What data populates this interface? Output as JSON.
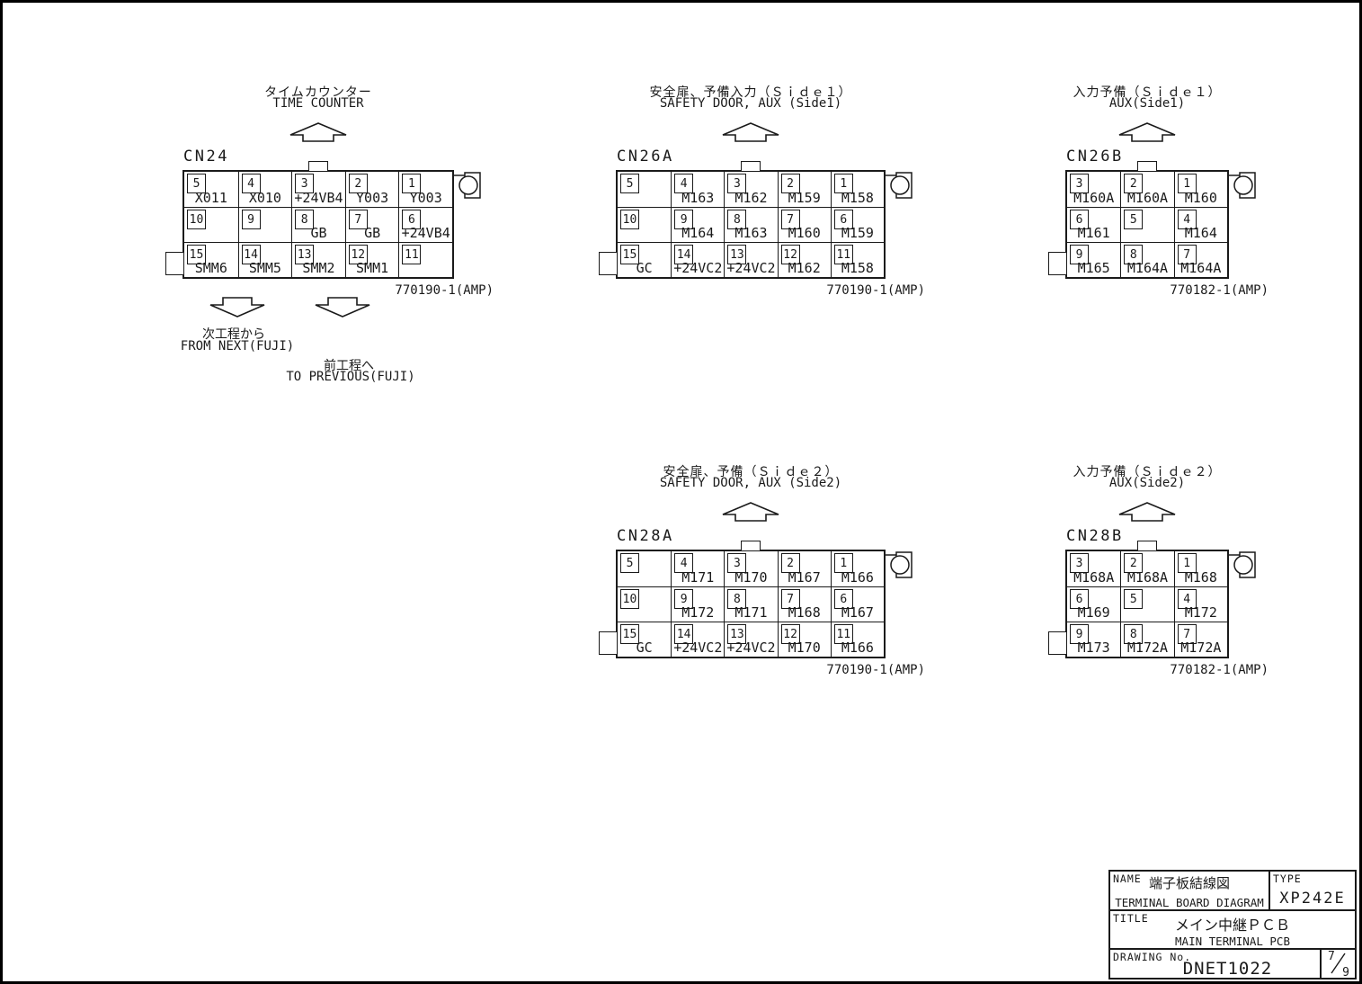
{
  "page": {
    "background": "#ffffff",
    "line_color": "#1a1a1a"
  },
  "icons": {
    "up_arrow": "up-arrow-icon",
    "down_arrow": "down-arrow-icon",
    "polarity_key": "connector-polarity-key-icon"
  },
  "connectors": {
    "cn24": {
      "id_label": "CN24",
      "heading_jp": "タイムカウンター",
      "heading_en": "TIME COUNTER",
      "part_number": "770190-1(AMP)",
      "rows": [
        [
          {
            "pin": "5",
            "label": "X011"
          },
          {
            "pin": "4",
            "label": "X010"
          },
          {
            "pin": "3",
            "label": "+24VB4"
          },
          {
            "pin": "2",
            "label": "Y003"
          },
          {
            "pin": "1",
            "label": "Y003"
          }
        ],
        [
          {
            "pin": "10",
            "label": ""
          },
          {
            "pin": "9",
            "label": ""
          },
          {
            "pin": "8",
            "label": "GB"
          },
          {
            "pin": "7",
            "label": "GB"
          },
          {
            "pin": "6",
            "label": "+24VB4"
          }
        ],
        [
          {
            "pin": "15",
            "label": "SMM6"
          },
          {
            "pin": "14",
            "label": "SMM5"
          },
          {
            "pin": "13",
            "label": "SMM2"
          },
          {
            "pin": "12",
            "label": "SMM1"
          },
          {
            "pin": "11",
            "label": ""
          }
        ]
      ]
    },
    "cn26a": {
      "id_label": "CN26A",
      "heading_jp": "安全扉、予備入力（Ｓｉｄｅ１）",
      "heading_en": "SAFETY DOOR, AUX (Side1)",
      "part_number": "770190-1(AMP)",
      "rows": [
        [
          {
            "pin": "5",
            "label": ""
          },
          {
            "pin": "4",
            "label": "M163"
          },
          {
            "pin": "3",
            "label": "M162"
          },
          {
            "pin": "2",
            "label": "M159"
          },
          {
            "pin": "1",
            "label": "M158"
          }
        ],
        [
          {
            "pin": "10",
            "label": ""
          },
          {
            "pin": "9",
            "label": "M164"
          },
          {
            "pin": "8",
            "label": "M163"
          },
          {
            "pin": "7",
            "label": "M160"
          },
          {
            "pin": "6",
            "label": "M159"
          }
        ],
        [
          {
            "pin": "15",
            "label": "GC"
          },
          {
            "pin": "14",
            "label": "+24VC2"
          },
          {
            "pin": "13",
            "label": "+24VC2"
          },
          {
            "pin": "12",
            "label": "M162"
          },
          {
            "pin": "11",
            "label": "M158"
          }
        ]
      ]
    },
    "cn26b": {
      "id_label": "CN26B",
      "heading_jp": "入力予備（Ｓｉｄｅ１）",
      "heading_en": "AUX(Side1)",
      "part_number": "770182-1(AMP)",
      "rows": [
        [
          {
            "pin": "3",
            "label": "M160A"
          },
          {
            "pin": "2",
            "label": "M160A"
          },
          {
            "pin": "1",
            "label": "M160"
          }
        ],
        [
          {
            "pin": "6",
            "label": "M161"
          },
          {
            "pin": "5",
            "label": ""
          },
          {
            "pin": "4",
            "label": "M164"
          }
        ],
        [
          {
            "pin": "9",
            "label": "M165"
          },
          {
            "pin": "8",
            "label": "M164A"
          },
          {
            "pin": "7",
            "label": "M164A"
          }
        ]
      ]
    },
    "cn28a": {
      "id_label": "CN28A",
      "heading_jp": "安全扉、予備（Ｓｉｄｅ２）",
      "heading_en": "SAFETY DOOR, AUX (Side2)",
      "part_number": "770190-1(AMP)",
      "rows": [
        [
          {
            "pin": "5",
            "label": ""
          },
          {
            "pin": "4",
            "label": "M171"
          },
          {
            "pin": "3",
            "label": "M170"
          },
          {
            "pin": "2",
            "label": "M167"
          },
          {
            "pin": "1",
            "label": "M166"
          }
        ],
        [
          {
            "pin": "10",
            "label": ""
          },
          {
            "pin": "9",
            "label": "M172"
          },
          {
            "pin": "8",
            "label": "M171"
          },
          {
            "pin": "7",
            "label": "M168"
          },
          {
            "pin": "6",
            "label": "M167"
          }
        ],
        [
          {
            "pin": "15",
            "label": "GC"
          },
          {
            "pin": "14",
            "label": "+24VC2"
          },
          {
            "pin": "13",
            "label": "+24VC2"
          },
          {
            "pin": "12",
            "label": "M170"
          },
          {
            "pin": "11",
            "label": "M166"
          }
        ]
      ]
    },
    "cn28b": {
      "id_label": "CN28B",
      "heading_jp": "入力予備（Ｓｉｄｅ２）",
      "heading_en": "AUX(Side2)",
      "part_number": "770182-1(AMP)",
      "rows": [
        [
          {
            "pin": "3",
            "label": "M168A"
          },
          {
            "pin": "2",
            "label": "M168A"
          },
          {
            "pin": "1",
            "label": "M168"
          }
        ],
        [
          {
            "pin": "6",
            "label": "M169"
          },
          {
            "pin": "5",
            "label": ""
          },
          {
            "pin": "4",
            "label": "M172"
          }
        ],
        [
          {
            "pin": "9",
            "label": "M173"
          },
          {
            "pin": "8",
            "label": "M172A"
          },
          {
            "pin": "7",
            "label": "M172A"
          }
        ]
      ]
    }
  },
  "annotations": {
    "from_next_jp": "次工程から",
    "from_next_en": "FROM NEXT(FUJI)",
    "to_previous_jp": "前工程へ",
    "to_previous_en": "TO PREVIOUS(FUJI)"
  },
  "title_block": {
    "name_label": "NAME",
    "name_jp": "端子板結線図",
    "name_en": "TERMINAL BOARD DIAGRAM",
    "type_label": "TYPE",
    "type_value": "XP242E",
    "title_label": "TITLE",
    "title_jp": "メイン中継ＰＣＢ",
    "title_en": "MAIN TERMINAL PCB",
    "drawing_label": "DRAWING No.",
    "drawing_value": "DNET1022",
    "page_numerator": "7",
    "page_denominator": "9"
  }
}
